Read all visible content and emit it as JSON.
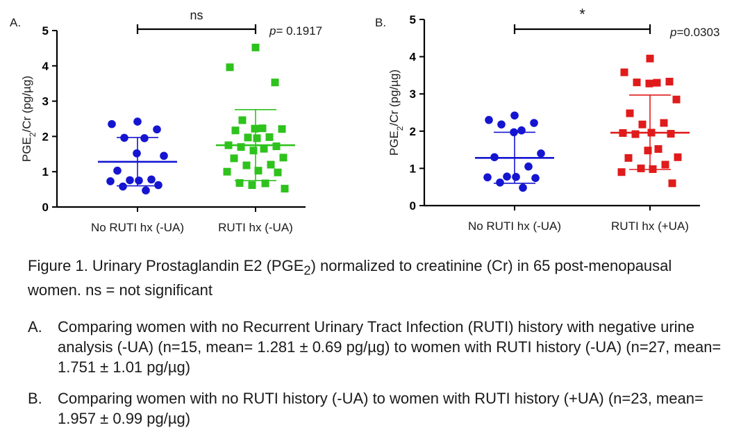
{
  "chart_data": [
    {
      "type": "scatter",
      "panel_label": "A.",
      "ylabel": "PGE2/Cr (pg/µg)",
      "ylabel_parts": {
        "main": "PGE",
        "sub": "2",
        "rest": "/Cr (pg/µg)"
      },
      "ylim": [
        0,
        5
      ],
      "yticks": [
        "0",
        "1",
        "2",
        "3",
        "4",
        "5"
      ],
      "categories": [
        "No RUTI hx (-UA)",
        "RUTI hx (-UA)"
      ],
      "significance": "ns",
      "p_value": {
        "prefix": "p",
        "text": "= 0.1917"
      },
      "series": [
        {
          "color": "#1515d1",
          "marker": "circle",
          "mean": 1.281,
          "sd_low": 0.6,
          "sd_high": 1.97,
          "values": [
            2.42,
            2.35,
            2.2,
            1.96,
            1.95,
            1.52,
            1.45,
            1.03,
            0.78,
            0.76,
            0.75,
            0.73,
            0.62,
            0.58,
            0.47
          ]
        },
        {
          "color": "#2ec21d",
          "marker": "square",
          "mean": 1.751,
          "sd_low": 0.75,
          "sd_high": 2.76,
          "values": [
            4.52,
            3.96,
            3.53,
            2.46,
            2.23,
            2.22,
            2.21,
            2.17,
            1.98,
            1.97,
            1.95,
            1.75,
            1.72,
            1.7,
            1.65,
            1.6,
            1.4,
            1.38,
            1.2,
            1.18,
            1.03,
            1.0,
            0.98,
            0.68,
            0.67,
            0.62,
            0.52
          ]
        }
      ]
    },
    {
      "type": "scatter",
      "panel_label": "B.",
      "ylabel": "PGE2/Cr (pg/µg)",
      "ylabel_parts": {
        "main": "PGE",
        "sub": "2",
        "rest": "/Cr (pg/µg)"
      },
      "ylim": [
        0,
        5
      ],
      "yticks": [
        "0",
        "1",
        "2",
        "3",
        "4",
        "5"
      ],
      "categories": [
        "No RUTI hx (-UA)",
        "RUTI hx (+UA)"
      ],
      "significance": "*",
      "p_value": {
        "prefix": "p",
        "text": "=0.0303"
      },
      "series": [
        {
          "color": "#1515d1",
          "marker": "circle",
          "mean": 1.281,
          "sd_low": 0.6,
          "sd_high": 1.97,
          "values": [
            2.42,
            2.3,
            2.22,
            2.18,
            2.02,
            1.97,
            1.4,
            1.3,
            1.05,
            0.78,
            0.77,
            0.76,
            0.74,
            0.62,
            0.48
          ]
        },
        {
          "color": "#e01b1b",
          "marker": "square",
          "mean": 1.957,
          "sd_low": 0.97,
          "sd_high": 2.97,
          "values": [
            3.95,
            3.58,
            3.33,
            3.31,
            3.3,
            3.28,
            2.85,
            2.48,
            2.22,
            2.18,
            1.96,
            1.95,
            1.93,
            1.92,
            1.52,
            1.48,
            1.3,
            1.28,
            1.1,
            1.0,
            0.98,
            0.9,
            0.6
          ]
        }
      ]
    }
  ],
  "caption": {
    "pre": "Figure 1. Urinary Prostaglandin E2 (PGE",
    "sub": "2",
    "post": ") normalized to creatinine (Cr) in 65 post-menopausal women. ns = not significant"
  },
  "descriptions": [
    {
      "label": "A.",
      "text": "Comparing women with no Recurrent Urinary Tract Infection (RUTI) history with negative urine analysis (-UA) (n=15, mean= 1.281 ± 0.69 pg/µg) to women with RUTI history (-UA) (n=27, mean= 1.751 ± 1.01 pg/µg)"
    },
    {
      "label": "B.",
      "text": "Comparing women with no RUTI history (-UA) to women with RUTI history (+UA) (n=23, mean= 1.957 ± 0.99 pg/µg)"
    }
  ]
}
